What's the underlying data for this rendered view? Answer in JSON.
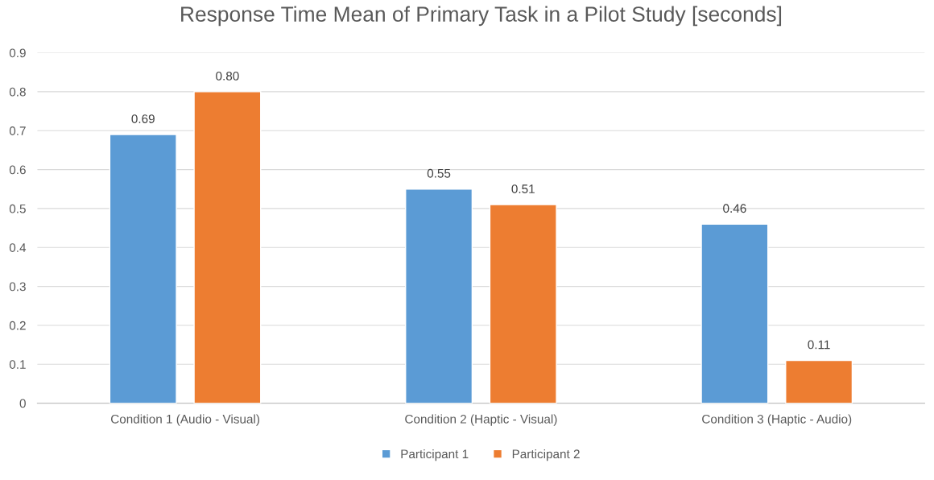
{
  "chart_data": {
    "type": "bar",
    "title": "Response Time Mean of Primary Task in a Pilot Study [seconds]",
    "categories": [
      "Condition 1 (Audio - Visual)",
      "Condition 2 (Haptic - Visual)",
      "Condition 3 (Haptic - Audio)"
    ],
    "series": [
      {
        "name": "Participant 1",
        "color": "#5b9bd5",
        "values": [
          0.69,
          0.55,
          0.46
        ],
        "value_labels": [
          "0.69",
          "0.55",
          "0.46"
        ]
      },
      {
        "name": "Participant 2",
        "color": "#ed7d31",
        "values": [
          0.8,
          0.51,
          0.11
        ],
        "value_labels": [
          "0.80",
          "0.51",
          "0.11"
        ]
      }
    ],
    "ylim": [
      0,
      0.9
    ],
    "yticks": [
      0,
      0.1,
      0.2,
      0.3,
      0.4,
      0.5,
      0.6,
      0.7,
      0.8,
      0.9
    ],
    "grid": "y",
    "legend": "bottom"
  }
}
